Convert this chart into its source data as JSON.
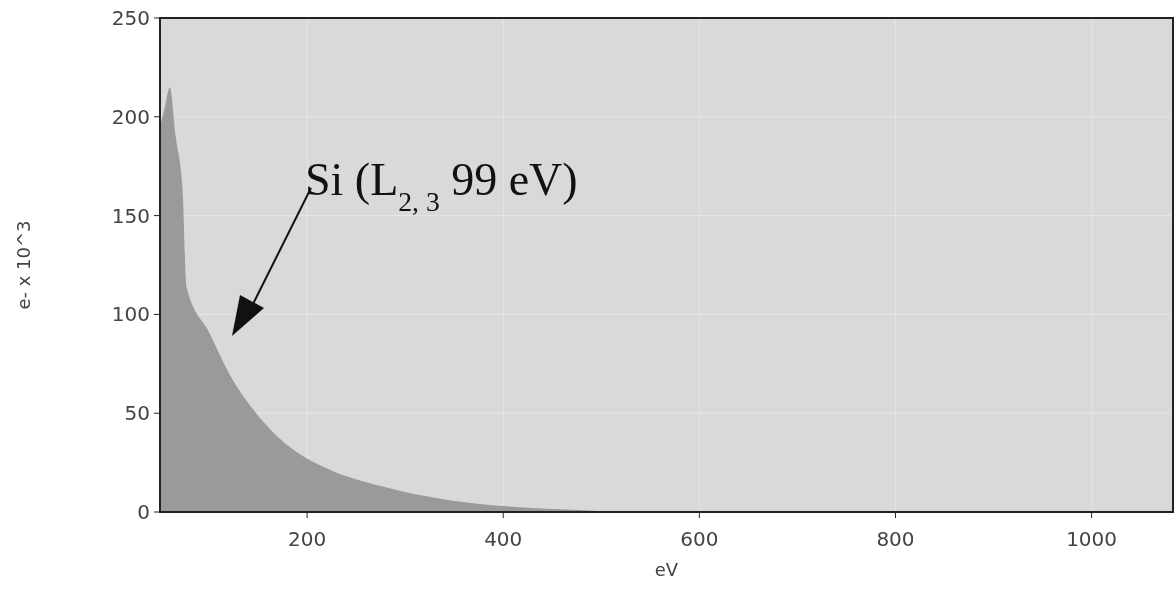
{
  "chart_data": {
    "type": "area",
    "xlabel": "eV",
    "ylabel": "e- x 10^3",
    "x": [
      50,
      55,
      60,
      66,
      73,
      77,
      100,
      124,
      148,
      182,
      225,
      276,
      345,
      413,
      477,
      520
    ],
    "values": [
      195,
      205,
      215,
      190,
      163,
      114,
      91,
      67,
      50,
      33,
      21,
      13,
      6,
      2.5,
      1,
      0
    ],
    "color": "#9a9a9a",
    "xlim": [
      50,
      1083
    ],
    "ylim": [
      0,
      250
    ],
    "xticks": [
      200,
      400,
      600,
      800,
      1000
    ],
    "yticks": [
      0,
      50,
      100,
      150,
      200,
      250
    ],
    "grid": true,
    "annotations": [
      "Si (L$_{2, 3}$ 99 eV)"
    ]
  }
}
